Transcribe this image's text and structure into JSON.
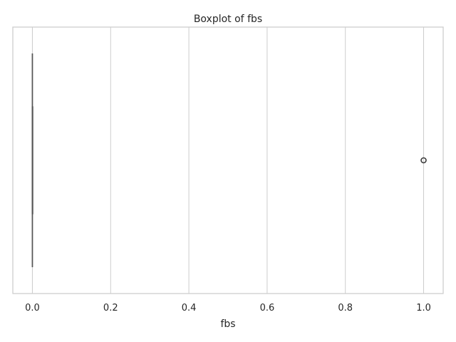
{
  "chart_data": {
    "type": "box",
    "title": "Boxplot of fbs",
    "xlabel": "fbs",
    "ylabel": "",
    "orientation": "horizontal",
    "xlim": [
      -0.05,
      1.05
    ],
    "xticks": [
      0.0,
      0.2,
      0.4,
      0.6,
      0.8,
      1.0
    ],
    "xtick_labels": [
      "0.0",
      "0.2",
      "0.4",
      "0.6",
      "0.8",
      "1.0"
    ],
    "grid": "vertical",
    "box": {
      "min": 0.0,
      "q1": 0.0,
      "median": 0.0,
      "q3": 0.0,
      "max": 0.0
    },
    "outliers": [
      1.0
    ],
    "colors": {
      "line": "#555555",
      "grid": "#cccccc",
      "frame": "#cccccc",
      "text": "#262626"
    }
  }
}
